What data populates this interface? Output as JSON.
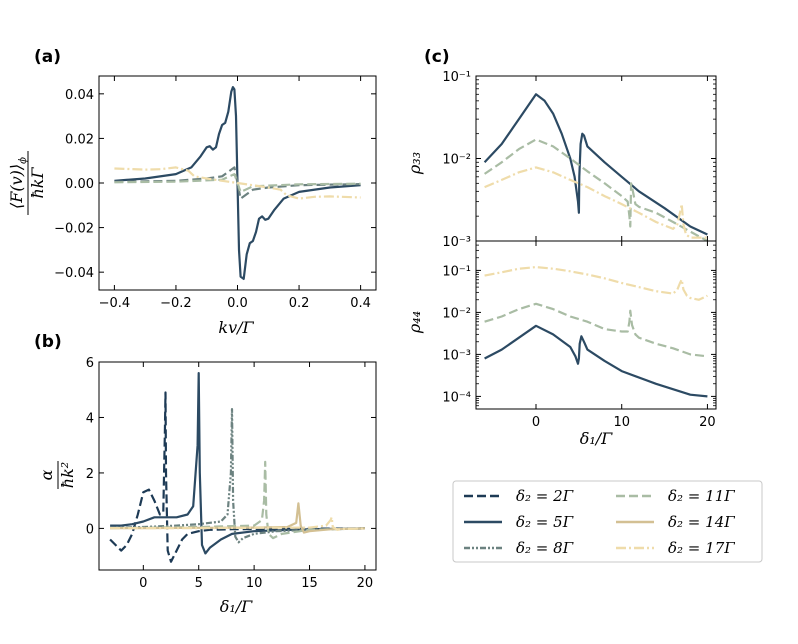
{
  "colors": {
    "d2": "#1d3a55",
    "d5": "#2c4a63",
    "d8": "#6c8280",
    "d11": "#a9bca4",
    "d14": "#d3c093",
    "d17": "#efdcaa"
  },
  "chart_data": [
    {
      "id": "a",
      "panel_label": "(a)",
      "type": "line",
      "xlabel": "kv/Γ",
      "ylabel_num": "⟨F(v)⟩",
      "ylabel_sub": "ϕ",
      "ylabel_den": "ħkΓ",
      "xlim": [
        -0.45,
        0.45
      ],
      "ylim": [
        -0.048,
        0.048
      ],
      "xticks": [
        -0.4,
        -0.2,
        0.0,
        0.2,
        0.4
      ],
      "xtick_labels": [
        "−0.4",
        "−0.2",
        "0.0",
        "0.2",
        "0.4"
      ],
      "yticks": [
        -0.04,
        -0.02,
        0.0,
        0.02,
        0.04
      ],
      "ytick_labels": [
        "−0.04",
        "−0.02",
        "0.00",
        "0.02",
        "0.04"
      ],
      "series": [
        {
          "key": "d5",
          "style": "solid",
          "x": [
            -0.4,
            -0.3,
            -0.2,
            -0.15,
            -0.12,
            -0.1,
            -0.09,
            -0.08,
            -0.07,
            -0.06,
            -0.05,
            -0.04,
            -0.03,
            -0.02,
            -0.015,
            -0.01,
            -0.005,
            0.0,
            0.005,
            0.01,
            0.02,
            0.03,
            0.04,
            0.05,
            0.06,
            0.07,
            0.08,
            0.09,
            0.1,
            0.12,
            0.15,
            0.2,
            0.3,
            0.4
          ],
          "y": [
            0.001,
            0.002,
            0.004,
            0.007,
            0.012,
            0.016,
            0.0165,
            0.015,
            0.016,
            0.022,
            0.026,
            0.027,
            0.032,
            0.041,
            0.043,
            0.042,
            0.03,
            0.0,
            -0.03,
            -0.042,
            -0.043,
            -0.032,
            -0.027,
            -0.026,
            -0.022,
            -0.016,
            -0.015,
            -0.0165,
            -0.016,
            -0.012,
            -0.007,
            -0.004,
            -0.002,
            -0.001
          ]
        },
        {
          "key": "d8",
          "style": "dashed",
          "x": [
            -0.4,
            -0.2,
            -0.1,
            -0.05,
            -0.02,
            -0.01,
            0.0,
            0.01,
            0.02,
            0.05,
            0.1,
            0.2,
            0.4
          ],
          "y": [
            0.0005,
            0.001,
            0.002,
            0.003,
            0.006,
            0.007,
            0.0,
            -0.007,
            -0.006,
            -0.003,
            -0.002,
            -0.001,
            -0.0005
          ]
        },
        {
          "key": "d11",
          "style": "dashed",
          "x": [
            -0.4,
            -0.2,
            -0.05,
            -0.01,
            0.0,
            0.01,
            0.05,
            0.2,
            0.4
          ],
          "y": [
            0.0003,
            0.0006,
            0.0015,
            0.004,
            0.0,
            -0.004,
            -0.0015,
            -0.0006,
            -0.0003
          ]
        },
        {
          "key": "d17",
          "style": "dashdot",
          "x": [
            -0.4,
            -0.3,
            -0.25,
            -0.2,
            -0.16,
            -0.14,
            -0.12,
            -0.1,
            -0.05,
            0.0,
            0.05,
            0.1,
            0.12,
            0.14,
            0.16,
            0.2,
            0.25,
            0.3,
            0.4
          ],
          "y": [
            0.0065,
            0.006,
            0.0062,
            0.007,
            0.0055,
            0.003,
            0.0025,
            0.002,
            0.001,
            0.0,
            -0.001,
            -0.002,
            -0.0025,
            -0.003,
            -0.0055,
            -0.007,
            -0.0062,
            -0.006,
            -0.0065
          ]
        }
      ]
    },
    {
      "id": "b",
      "panel_label": "(b)",
      "type": "line",
      "xlabel": "δ₁/Γ",
      "ylabel_num": "α",
      "ylabel_den": "ħk²",
      "xlim": [
        -4,
        21
      ],
      "ylim": [
        -1.5,
        6.0
      ],
      "xticks": [
        0,
        5,
        10,
        15,
        20
      ],
      "xtick_labels": [
        "0",
        "5",
        "10",
        "15",
        "20"
      ],
      "yticks": [
        0,
        2,
        4,
        6
      ],
      "ytick_labels": [
        "0",
        "2",
        "4",
        "6"
      ],
      "series": [
        {
          "key": "d2",
          "style": "dashed",
          "x": [
            -3.0,
            -2.5,
            -2.0,
            -1.5,
            -1.0,
            -0.5,
            0.0,
            0.5,
            1.0,
            1.5,
            1.8,
            1.95,
            2.0,
            2.05,
            2.2,
            2.5,
            3.0,
            3.5,
            4.0,
            5,
            6,
            8,
            10,
            15,
            20
          ],
          "y": [
            -0.4,
            -0.6,
            -0.8,
            -0.6,
            -0.2,
            0.5,
            1.3,
            1.4,
            1.0,
            0.5,
            0.6,
            3.5,
            4.9,
            2.0,
            -0.8,
            -1.2,
            -0.8,
            -0.4,
            -0.2,
            -0.1,
            -0.05,
            -0.03,
            -0.02,
            -0.01,
            0.0
          ]
        },
        {
          "key": "d5",
          "style": "solid",
          "x": [
            -3,
            -2,
            -1,
            0,
            1,
            2,
            3,
            4,
            4.5,
            4.9,
            5.0,
            5.1,
            5.3,
            5.6,
            6,
            7,
            8,
            10,
            15,
            20
          ],
          "y": [
            0.1,
            0.1,
            0.15,
            0.25,
            0.4,
            0.4,
            0.4,
            0.5,
            0.8,
            3.0,
            5.6,
            2.0,
            -0.6,
            -0.9,
            -0.7,
            -0.4,
            -0.2,
            -0.1,
            -0.03,
            0.0
          ]
        },
        {
          "key": "d8",
          "style": "dashdotdot",
          "x": [
            -3,
            0,
            3,
            5,
            7,
            7.6,
            7.9,
            8.0,
            8.1,
            8.3,
            8.6,
            9,
            10,
            12,
            15,
            20
          ],
          "y": [
            0.02,
            0.05,
            0.1,
            0.15,
            0.25,
            0.5,
            2.0,
            4.3,
            1.0,
            -0.3,
            -0.5,
            -0.35,
            -0.2,
            -0.1,
            -0.05,
            0.0
          ]
        },
        {
          "key": "d11",
          "style": "dashed",
          "x": [
            -3,
            0,
            5,
            10,
            10.7,
            10.9,
            11.0,
            11.1,
            11.3,
            11.7,
            12.5,
            15,
            20
          ],
          "y": [
            0.01,
            0.02,
            0.05,
            0.1,
            0.3,
            1.0,
            2.4,
            0.5,
            -0.2,
            -0.35,
            -0.2,
            -0.05,
            0.0
          ]
        },
        {
          "key": "d14",
          "style": "solid",
          "x": [
            -3,
            0,
            5,
            10,
            13,
            13.8,
            14.0,
            14.2,
            14.5,
            15,
            17,
            20
          ],
          "y": [
            0.01,
            0.01,
            0.02,
            0.03,
            0.05,
            0.2,
            0.9,
            0.1,
            -0.15,
            -0.1,
            -0.03,
            0.0
          ]
        },
        {
          "key": "d17",
          "style": "dashdot",
          "x": [
            -3,
            0,
            5,
            10,
            15,
            16.5,
            16.9,
            17.0,
            17.1,
            17.5,
            18,
            20
          ],
          "y": [
            0.01,
            0.01,
            0.01,
            0.02,
            0.03,
            0.1,
            0.3,
            0.4,
            0.05,
            -0.05,
            -0.02,
            0.0
          ]
        }
      ]
    },
    {
      "id": "c1",
      "panel_label": "(c)",
      "type": "line",
      "scale": "log",
      "ylabel": "ρ₃₃",
      "xlim": [
        -7,
        21
      ],
      "ylim_exp": [
        -3,
        -1
      ],
      "ytick_exps": [
        -3,
        -2,
        -1
      ],
      "ytick_labels": [
        "10⁻³",
        "10⁻²",
        "10⁻¹"
      ],
      "xticks": [
        0,
        10,
        20
      ],
      "series": [
        {
          "key": "d5",
          "style": "solid",
          "x": [
            -6,
            -4,
            -2,
            0,
            1,
            2,
            3,
            4,
            4.5,
            4.9,
            5.0,
            5.05,
            5.2,
            5.4,
            5.6,
            6,
            8,
            10,
            12,
            15,
            18,
            20
          ],
          "y": [
            0.009,
            0.015,
            0.03,
            0.06,
            0.05,
            0.035,
            0.02,
            0.01,
            0.006,
            0.003,
            0.0022,
            0.006,
            0.015,
            0.02,
            0.019,
            0.014,
            0.009,
            0.006,
            0.004,
            0.0025,
            0.0015,
            0.0012
          ]
        },
        {
          "key": "d11",
          "style": "dashed",
          "x": [
            -6,
            -4,
            -2,
            0,
            2,
            4,
            6,
            8,
            10,
            10.7,
            10.9,
            11.0,
            11.1,
            11.3,
            11.6,
            12,
            14,
            16,
            18,
            20
          ],
          "y": [
            0.0065,
            0.009,
            0.013,
            0.017,
            0.014,
            0.01,
            0.007,
            0.005,
            0.0035,
            0.003,
            0.002,
            0.0015,
            0.005,
            0.004,
            0.0028,
            0.0026,
            0.0022,
            0.0017,
            0.0013,
            0.001
          ]
        },
        {
          "key": "d17",
          "style": "dashdot",
          "x": [
            -6,
            -4,
            -2,
            0,
            2,
            4,
            6,
            8,
            10,
            12,
            14,
            16,
            16.5,
            16.8,
            17.0,
            17.2,
            17.5,
            18,
            20
          ],
          "y": [
            0.0045,
            0.0055,
            0.0068,
            0.0078,
            0.0068,
            0.0055,
            0.0045,
            0.0035,
            0.0028,
            0.0022,
            0.0017,
            0.0014,
            0.0016,
            0.0022,
            0.0028,
            0.0016,
            0.0012,
            0.0011,
            0.0011
          ]
        }
      ]
    },
    {
      "id": "c2",
      "type": "line",
      "scale": "log",
      "ylabel": "ρ₄₄",
      "xlabel": "δ₁/Γ",
      "xlim": [
        -7,
        21
      ],
      "ylim_exp": [
        -4.3,
        -0.3
      ],
      "ytick_exps": [
        -4,
        -3,
        -2,
        -1
      ],
      "ytick_labels": [
        "10⁻⁴",
        "10⁻³",
        "10⁻²",
        "10⁻¹"
      ],
      "xticks": [
        0,
        10,
        20
      ],
      "xtick_labels": [
        "0",
        "10",
        "20"
      ],
      "series": [
        {
          "key": "d5",
          "style": "solid",
          "x": [
            -6,
            -4,
            -2,
            0,
            2,
            4,
            4.6,
            4.9,
            5.0,
            5.1,
            5.3,
            5.6,
            6,
            8,
            10,
            14,
            18,
            20
          ],
          "y": [
            0.0008,
            0.0013,
            0.0025,
            0.0048,
            0.003,
            0.0015,
            0.0009,
            0.0006,
            0.0008,
            0.0018,
            0.0027,
            0.002,
            0.0013,
            0.0007,
            0.0004,
            0.0002,
            0.00011,
            0.0001
          ]
        },
        {
          "key": "d11",
          "style": "dashed",
          "x": [
            -6,
            -4,
            -2,
            0,
            2,
            4,
            6,
            8,
            10,
            10.7,
            10.9,
            11.0,
            11.2,
            11.6,
            12,
            14,
            16,
            18,
            20
          ],
          "y": [
            0.006,
            0.008,
            0.012,
            0.016,
            0.012,
            0.008,
            0.006,
            0.004,
            0.0035,
            0.0035,
            0.006,
            0.011,
            0.005,
            0.003,
            0.0025,
            0.0018,
            0.0014,
            0.001,
            0.0009
          ]
        },
        {
          "key": "d17",
          "style": "dashdot",
          "x": [
            -6,
            -4,
            -2,
            0,
            2,
            4,
            6,
            8,
            10,
            12,
            14,
            16,
            16.5,
            16.8,
            17.0,
            17.2,
            17.6,
            18,
            19,
            20
          ],
          "y": [
            0.075,
            0.09,
            0.11,
            0.12,
            0.11,
            0.095,
            0.08,
            0.065,
            0.05,
            0.04,
            0.032,
            0.028,
            0.035,
            0.05,
            0.06,
            0.035,
            0.025,
            0.022,
            0.02,
            0.025
          ]
        }
      ]
    }
  ],
  "legend": {
    "prefix": "δ₂ = ",
    "items": [
      {
        "key": "d2",
        "style": "dashed",
        "label": "2Γ"
      },
      {
        "key": "d5",
        "style": "solid",
        "label": "5Γ"
      },
      {
        "key": "d8",
        "style": "dashdotdot",
        "label": "8Γ"
      },
      {
        "key": "d11",
        "style": "dashed",
        "label": "11Γ"
      },
      {
        "key": "d14",
        "style": "solid",
        "label": "14Γ"
      },
      {
        "key": "d17",
        "style": "dashdot",
        "label": "17Γ"
      }
    ]
  }
}
